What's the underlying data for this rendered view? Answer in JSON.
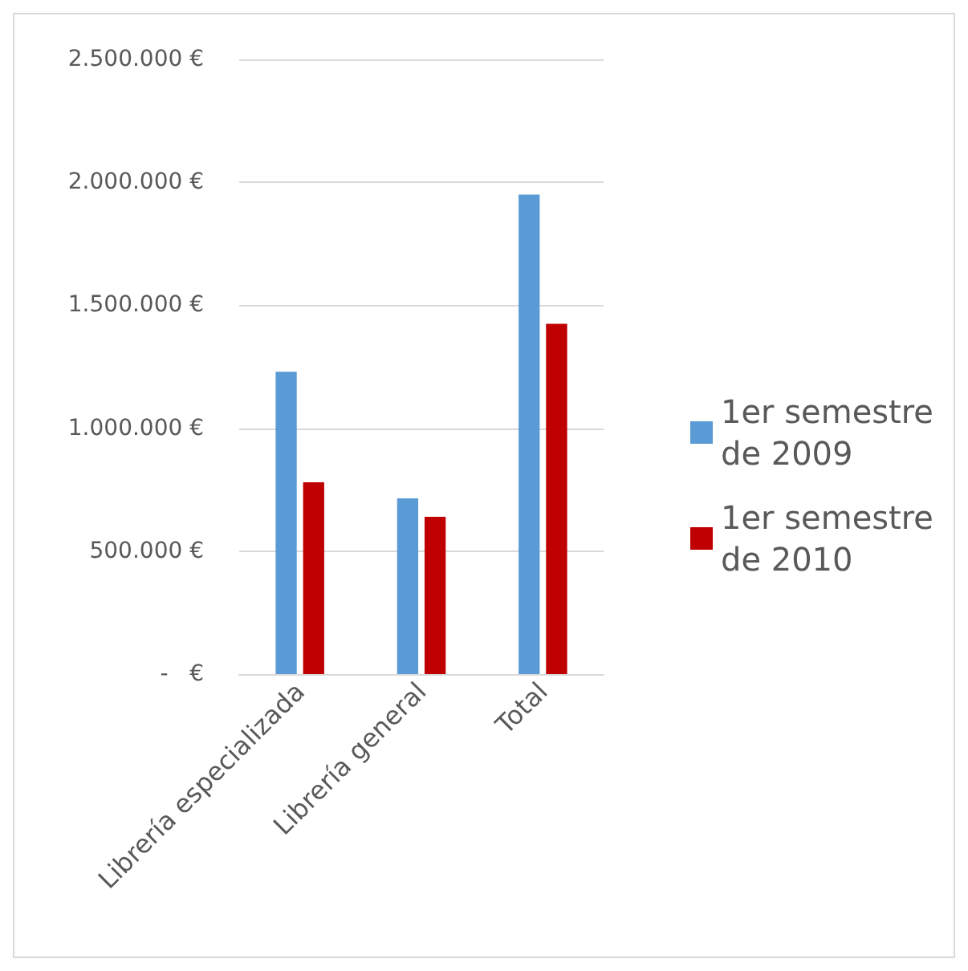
{
  "chart_data": {
    "type": "bar",
    "categories": [
      "Librería especializada",
      "Librería general",
      "Total"
    ],
    "series": [
      {
        "name": "1er semestre de 2009",
        "color": "#5b9bd5",
        "values": [
          1230000,
          715000,
          1950000
        ]
      },
      {
        "name": "1er semestre de 2010",
        "color": "#c00000",
        "values": [
          780000,
          640000,
          1425000
        ]
      }
    ],
    "ylim": [
      0,
      2500000
    ],
    "yticks": [
      {
        "value": 0,
        "label": "-   €"
      },
      {
        "value": 500000,
        "label": "500.000 €"
      },
      {
        "value": 1000000,
        "label": "1.000.000 €"
      },
      {
        "value": 1500000,
        "label": "1.500.000 €"
      },
      {
        "value": 2000000,
        "label": "2.000.000 €"
      },
      {
        "value": 2500000,
        "label": "2.500.000 €"
      }
    ],
    "grid": "y",
    "legend": "right"
  }
}
